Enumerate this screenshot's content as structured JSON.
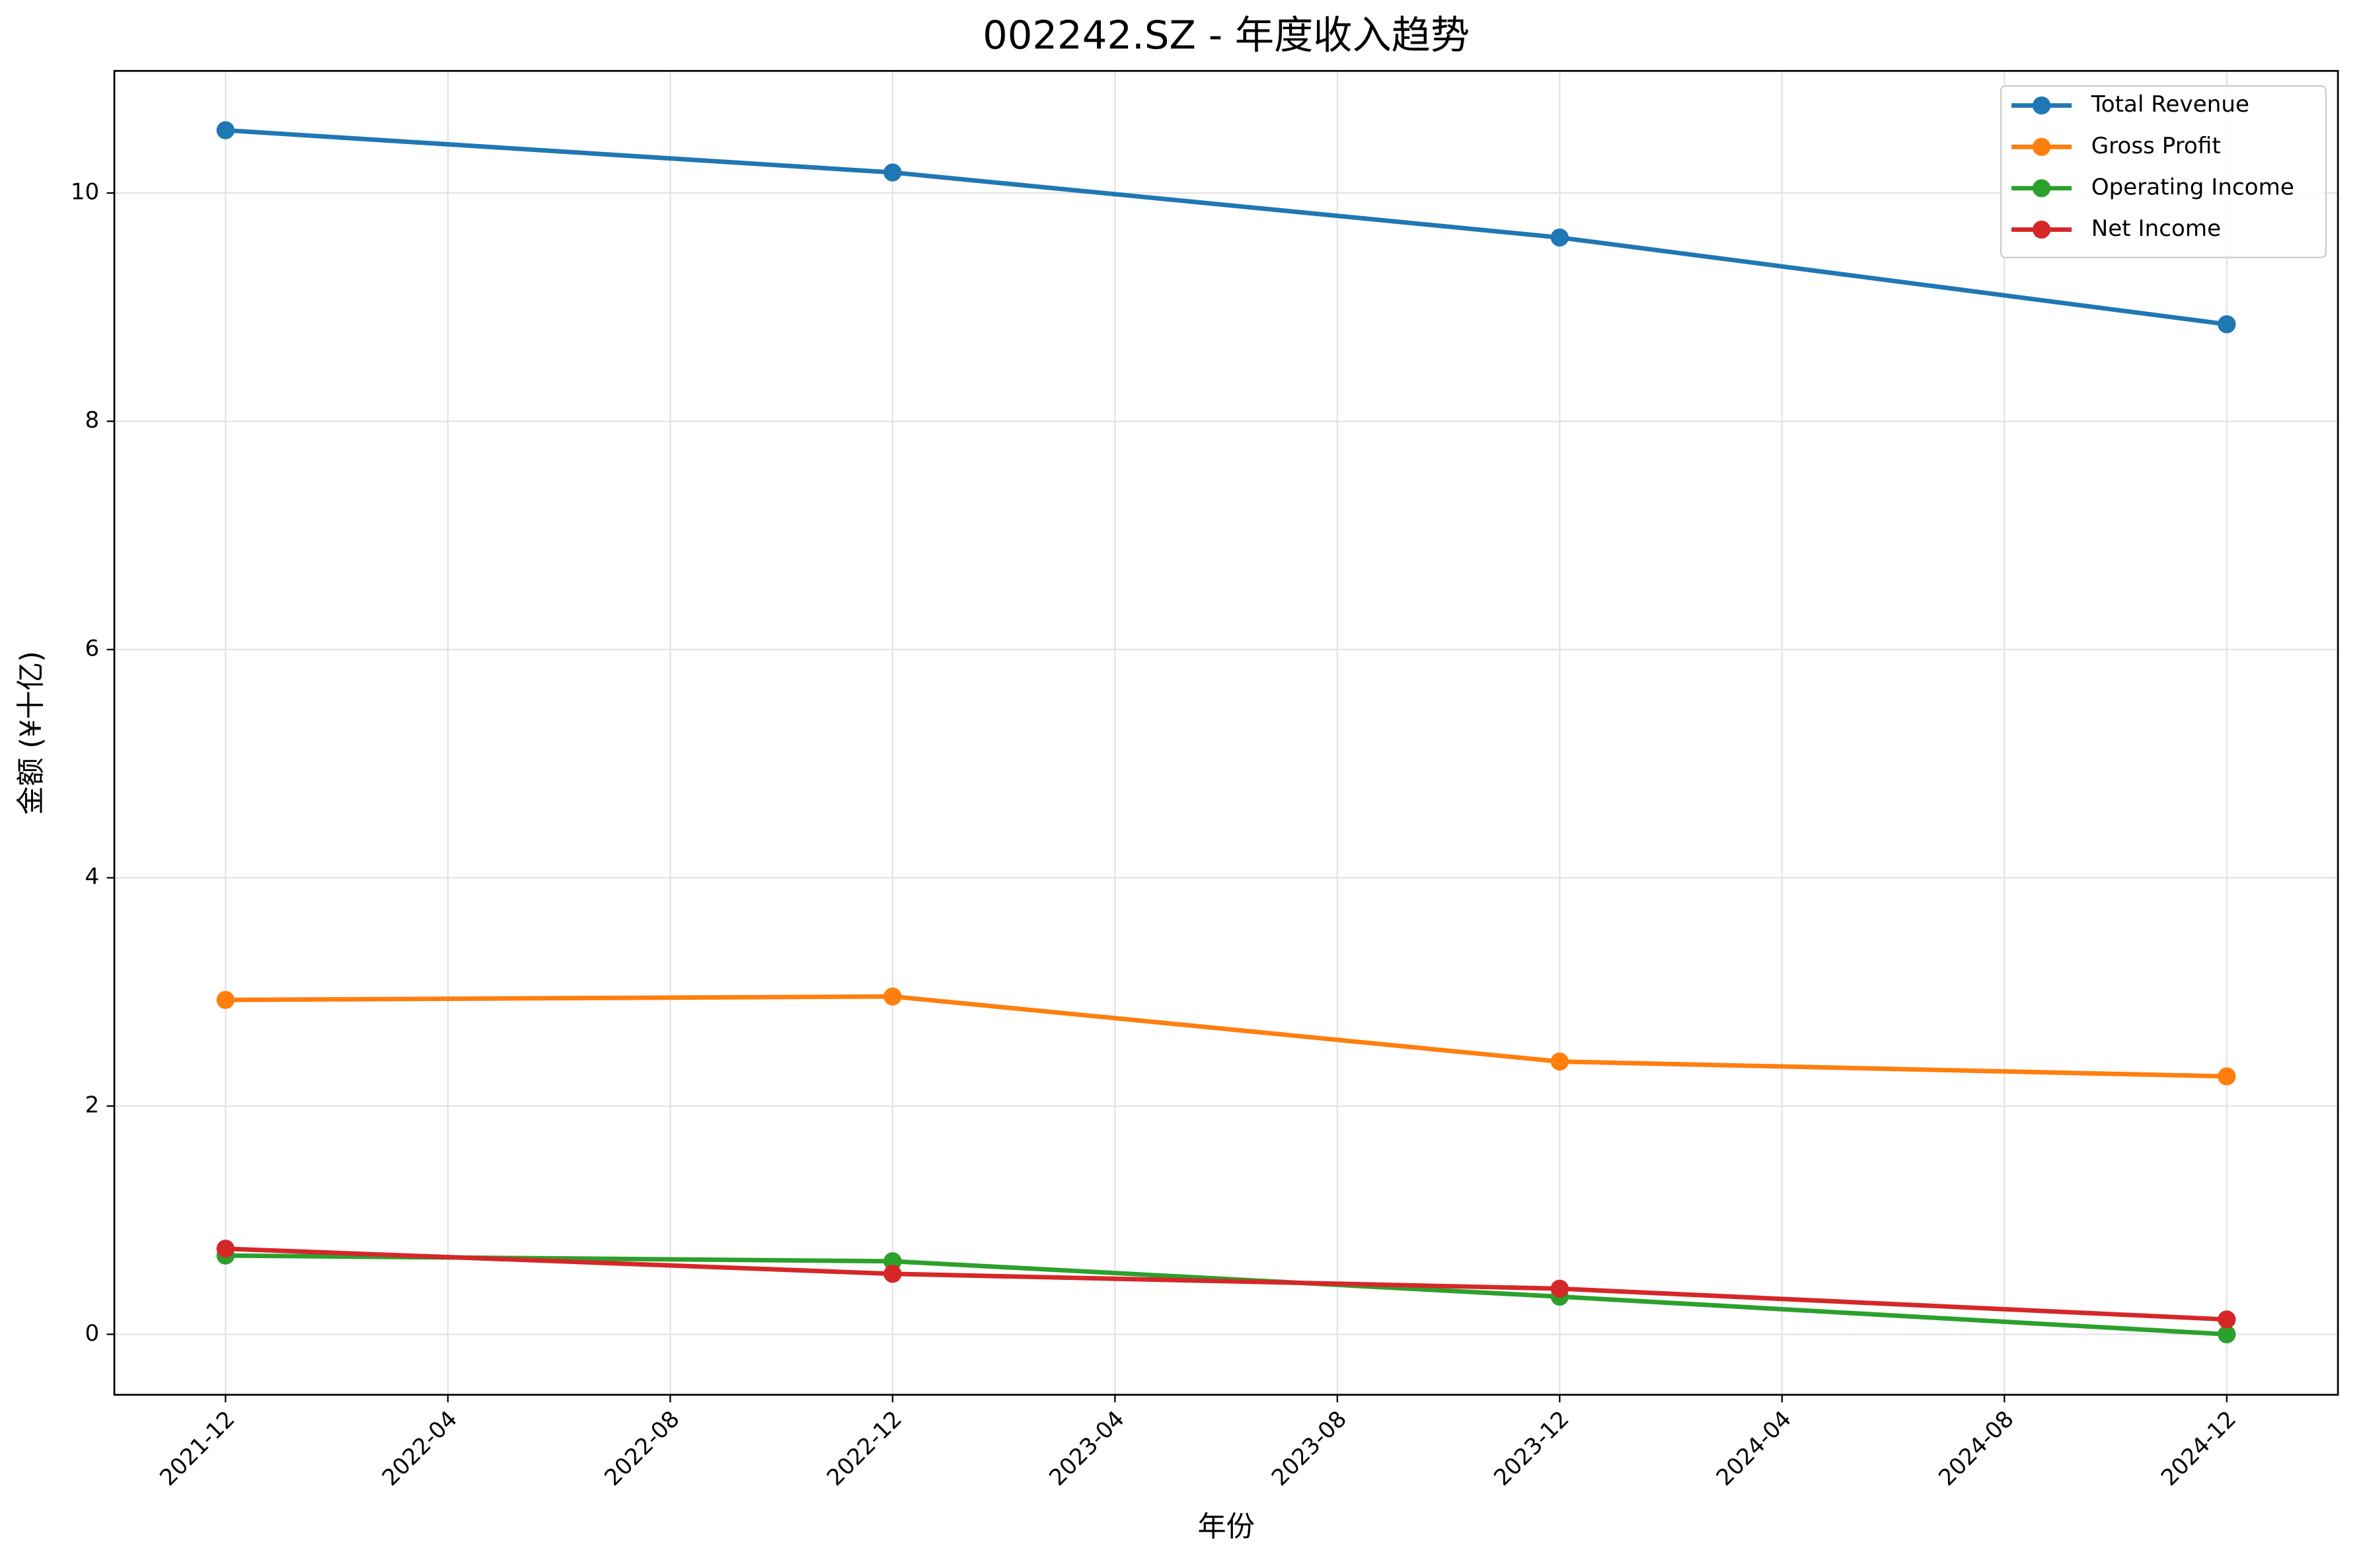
{
  "chart_data": {
    "type": "line",
    "title": "002242.SZ - 年度收入趋势",
    "x_label": "年份",
    "y_label": "金额 (¥十亿)",
    "x": [
      "2021-12",
      "2022-12",
      "2023-12",
      "2024-12"
    ],
    "series": [
      {
        "name": "Total Revenue",
        "color": "#1f77b4",
        "values": [
          10.55,
          10.18,
          9.61,
          8.85
        ]
      },
      {
        "name": "Gross Profit",
        "color": "#ff7f0e",
        "values": [
          2.93,
          2.96,
          2.39,
          2.26
        ]
      },
      {
        "name": "Operating Income",
        "color": "#2ca02c",
        "values": [
          0.69,
          0.64,
          0.33,
          0.0
        ]
      },
      {
        "name": "Net Income",
        "color": "#d62728",
        "values": [
          0.75,
          0.53,
          0.4,
          0.13
        ]
      }
    ],
    "xlim": [
      "2021-10",
      "2025-02"
    ],
    "xticks": [
      "2021-12",
      "2022-04",
      "2022-08",
      "2022-12",
      "2023-04",
      "2023-08",
      "2023-12",
      "2024-04",
      "2024-08",
      "2024-12"
    ],
    "ylim": [
      -0.53,
      11.07
    ],
    "yticks": [
      0,
      2,
      4,
      6,
      8,
      10
    ],
    "grid": true,
    "legend": "upper right"
  }
}
